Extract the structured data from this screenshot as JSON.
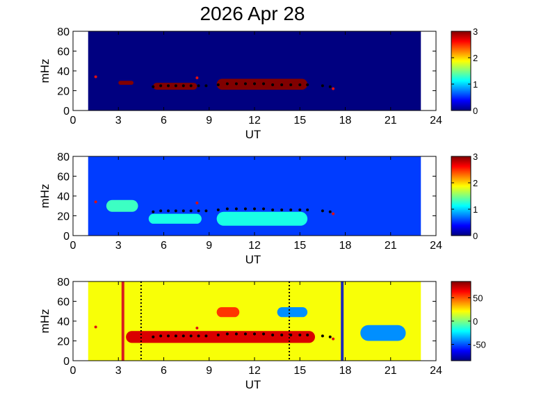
{
  "title": "2026 Apr 28",
  "chart_data": [
    {
      "type": "heatmap",
      "name": "panel-1",
      "xlabel": "UT",
      "ylabel": "mHz",
      "xlim": [
        0,
        24
      ],
      "ylim": [
        0,
        80
      ],
      "xticks": [
        0,
        3,
        6,
        9,
        12,
        15,
        18,
        21,
        24
      ],
      "yticks": [
        0,
        20,
        40,
        60,
        80
      ],
      "data_extent_x": [
        1,
        23
      ],
      "colorbar": {
        "range": [
          0,
          3
        ],
        "ticks": [
          0,
          1,
          2,
          3
        ]
      },
      "background_value": 0,
      "blobs": [
        {
          "x0": 3.0,
          "x1": 4.0,
          "f0": 26,
          "f1": 30,
          "value": 3
        },
        {
          "x0": 5.3,
          "x1": 8.2,
          "f0": 21,
          "f1": 28,
          "value": 3
        },
        {
          "x0": 9.5,
          "x1": 15.5,
          "f0": 21,
          "f1": 32,
          "value": 3
        }
      ],
      "red_points": [
        [
          1.5,
          34
        ],
        [
          8.2,
          33
        ],
        [
          17.2,
          22
        ]
      ],
      "black_points": [
        [
          5.3,
          24
        ],
        [
          5.8,
          25
        ],
        [
          6.3,
          25
        ],
        [
          6.8,
          25
        ],
        [
          7.3,
          25
        ],
        [
          7.8,
          25
        ],
        [
          8.3,
          25
        ],
        [
          8.8,
          25
        ],
        [
          9.6,
          26
        ],
        [
          10.2,
          27
        ],
        [
          10.8,
          27
        ],
        [
          11.4,
          27
        ],
        [
          12.0,
          27
        ],
        [
          12.6,
          27
        ],
        [
          13.2,
          26
        ],
        [
          13.8,
          26
        ],
        [
          14.4,
          26
        ],
        [
          15.0,
          26
        ],
        [
          15.5,
          26
        ],
        [
          16.5,
          25
        ],
        [
          17.0,
          24
        ]
      ]
    },
    {
      "type": "heatmap",
      "name": "panel-2",
      "xlabel": "UT",
      "ylabel": "mHz",
      "xlim": [
        0,
        24
      ],
      "ylim": [
        0,
        80
      ],
      "xticks": [
        0,
        3,
        6,
        9,
        12,
        15,
        18,
        21,
        24
      ],
      "yticks": [
        0,
        20,
        40,
        60,
        80
      ],
      "data_extent_x": [
        1,
        23
      ],
      "colorbar": {
        "range": [
          0,
          3
        ],
        "ticks": [
          0,
          1,
          2,
          3
        ]
      },
      "background_value": 0.55,
      "blobs": [
        {
          "x0": 2.2,
          "x1": 4.3,
          "f0": 24,
          "f1": 36,
          "value": 1.3
        },
        {
          "x0": 5.0,
          "x1": 8.5,
          "f0": 12,
          "f1": 22,
          "value": 1.2
        },
        {
          "x0": 9.5,
          "x1": 15.5,
          "f0": 10,
          "f1": 24,
          "value": 1.2
        }
      ],
      "red_points": [
        [
          1.5,
          34
        ],
        [
          8.2,
          33
        ],
        [
          17.2,
          22
        ]
      ],
      "black_points": [
        [
          5.3,
          24
        ],
        [
          5.8,
          25
        ],
        [
          6.3,
          25
        ],
        [
          6.8,
          25
        ],
        [
          7.3,
          25
        ],
        [
          7.8,
          25
        ],
        [
          8.3,
          25
        ],
        [
          8.8,
          25
        ],
        [
          9.6,
          26
        ],
        [
          10.2,
          27
        ],
        [
          10.8,
          27
        ],
        [
          11.4,
          27
        ],
        [
          12.0,
          27
        ],
        [
          12.6,
          27
        ],
        [
          13.2,
          26
        ],
        [
          13.8,
          26
        ],
        [
          14.4,
          26
        ],
        [
          15.0,
          26
        ],
        [
          15.5,
          26
        ],
        [
          16.5,
          25
        ],
        [
          17.0,
          24
        ]
      ]
    },
    {
      "type": "heatmap",
      "name": "panel-3",
      "xlabel": "UT",
      "ylabel": "mHz",
      "xlim": [
        0,
        24
      ],
      "ylim": [
        0,
        80
      ],
      "xticks": [
        0,
        3,
        6,
        9,
        12,
        15,
        18,
        21,
        24
      ],
      "yticks": [
        0,
        20,
        40,
        60,
        80
      ],
      "data_extent_x": [
        1,
        23
      ],
      "colorbar": {
        "range": [
          -85,
          85
        ],
        "ticks": [
          -50,
          0,
          50
        ]
      },
      "background_value": 20,
      "blobs": [
        {
          "x0": 3.5,
          "x1": 16.0,
          "f0": 18,
          "f1": 30,
          "value": 70
        },
        {
          "x0": 9.5,
          "x1": 11.0,
          "f0": 44,
          "f1": 54,
          "value": 55
        },
        {
          "x0": 13.5,
          "x1": 15.5,
          "f0": 44,
          "f1": 54,
          "value": -40
        },
        {
          "x0": 19.0,
          "x1": 22.0,
          "f0": 20,
          "f1": 36,
          "value": -40
        }
      ],
      "vertical_lines": [
        {
          "x": 3.3,
          "color": "#d81e1e",
          "style": "solid"
        },
        {
          "x": 17.8,
          "color": "#1e2ab8",
          "style": "solid"
        },
        {
          "x": 4.5,
          "color": "#000000",
          "style": "dotted"
        },
        {
          "x": 14.3,
          "color": "#000000",
          "style": "dotted"
        }
      ],
      "red_points": [
        [
          1.5,
          34
        ],
        [
          8.2,
          33
        ],
        [
          17.2,
          22
        ]
      ],
      "black_points": [
        [
          5.3,
          24
        ],
        [
          5.8,
          25
        ],
        [
          6.3,
          25
        ],
        [
          6.8,
          25
        ],
        [
          7.3,
          25
        ],
        [
          7.8,
          25
        ],
        [
          8.3,
          25
        ],
        [
          8.8,
          25
        ],
        [
          9.6,
          26
        ],
        [
          10.2,
          27
        ],
        [
          10.8,
          27
        ],
        [
          11.4,
          27
        ],
        [
          12.0,
          27
        ],
        [
          12.6,
          27
        ],
        [
          13.2,
          26
        ],
        [
          13.8,
          26
        ],
        [
          14.4,
          26
        ],
        [
          15.0,
          26
        ],
        [
          15.5,
          26
        ],
        [
          16.5,
          25
        ],
        [
          17.0,
          24
        ]
      ]
    }
  ]
}
